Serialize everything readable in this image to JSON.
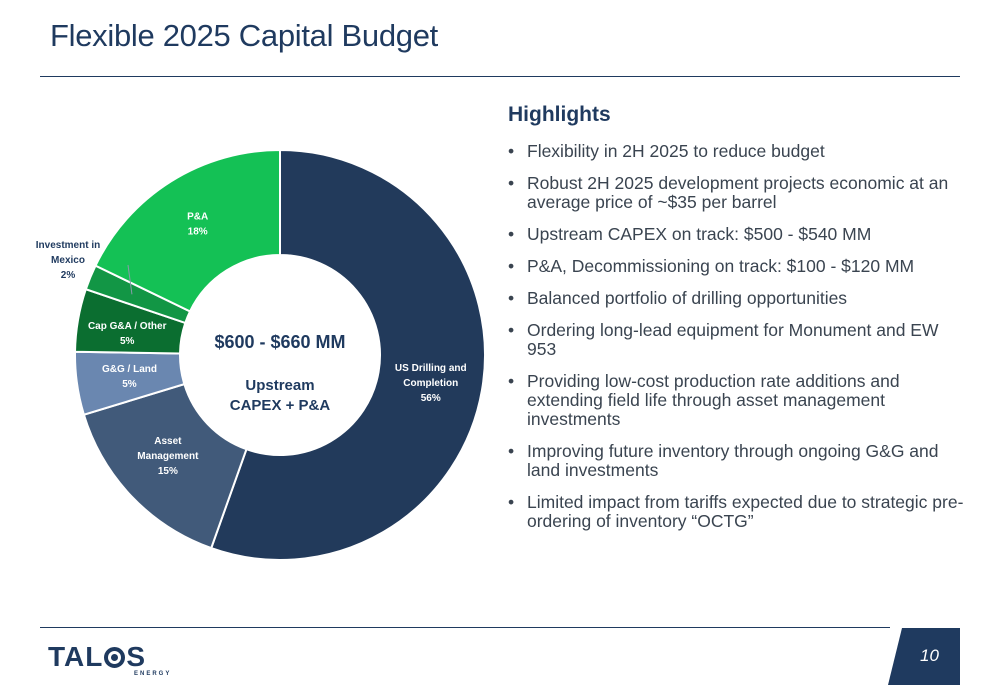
{
  "header": {
    "title": "Flexible 2025 Capital Budget"
  },
  "chart_data": {
    "type": "pie",
    "donut": true,
    "categories": [
      "US Drilling and Completion",
      "Asset Management",
      "G&G / Land",
      "Cap G&A / Other",
      "Investment in Mexico",
      "P&A"
    ],
    "values": [
      56,
      15,
      5,
      5,
      2,
      18
    ],
    "value_labels": [
      "56%",
      "15%",
      "5%",
      "5%",
      "2%",
      "18%"
    ],
    "colors": [
      "#223a5b",
      "#415a7a",
      "#6a87b0",
      "#0b6e30",
      "#129645",
      "#14c155"
    ],
    "center_text": {
      "amount": "$600 - $660 MM",
      "line1": "Upstream",
      "line2": "CAPEX + P&A"
    },
    "unit": "%"
  },
  "highlights": {
    "title": "Highlights",
    "bullet": "•",
    "items": [
      "Flexibility in 2H 2025 to reduce budget",
      "Robust 2H 2025 development projects economic at an average price of ~$35 per barrel",
      "Upstream CAPEX on track: $500 - $540 MM",
      "P&A, Decommissioning on track: $100 - $120 MM",
      "Balanced portfolio of drilling opportunities",
      "Ordering long-lead equipment for Monument and EW 953",
      "Providing low-cost production rate additions and extending field life through asset management investments",
      "Improving future inventory through ongoing G&G and land investments",
      "Limited impact from tariffs expected due to strategic pre-ordering of inventory “OCTG”"
    ]
  },
  "footer": {
    "logo_main_1": "TAL",
    "logo_main_2": "S",
    "logo_sub": "ENERGY",
    "page_number": "10"
  }
}
